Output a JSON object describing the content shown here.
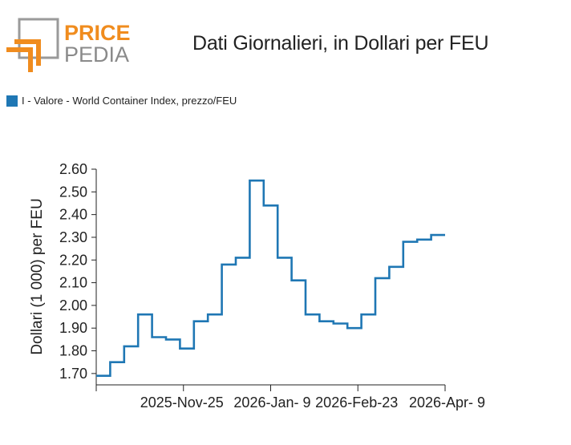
{
  "logo": {
    "top": "PRICE",
    "bottom": "PEDIA"
  },
  "chart_data": {
    "type": "line",
    "title": "Dati Giornalieri, in Dollari per FEU",
    "ylabel": "Dollari (1 000) per FEU",
    "xlabel": "",
    "ylim": [
      1.65,
      2.6
    ],
    "y_ticks": [
      "1.70",
      "1.80",
      "1.90",
      "2.00",
      "2.10",
      "2.20",
      "2.30",
      "2.40",
      "2.50",
      "2.60"
    ],
    "x_tick_labels": [
      "2025-Nov-25",
      "2026-Jan- 9",
      "2026-Feb-23",
      "2026-Apr- 9"
    ],
    "legend_placement": "top-left",
    "grid": false,
    "series": [
      {
        "name": "I - Valore - World Container Index, prezzo/FEU",
        "color": "#1f77b4",
        "step": true,
        "values": [
          1.69,
          1.75,
          1.82,
          1.96,
          1.86,
          1.85,
          1.81,
          1.93,
          1.96,
          2.18,
          2.21,
          2.55,
          2.44,
          2.21,
          2.11,
          1.96,
          1.93,
          1.92,
          1.9,
          1.96,
          2.12,
          2.17,
          2.28,
          2.29,
          2.31
        ]
      }
    ]
  }
}
